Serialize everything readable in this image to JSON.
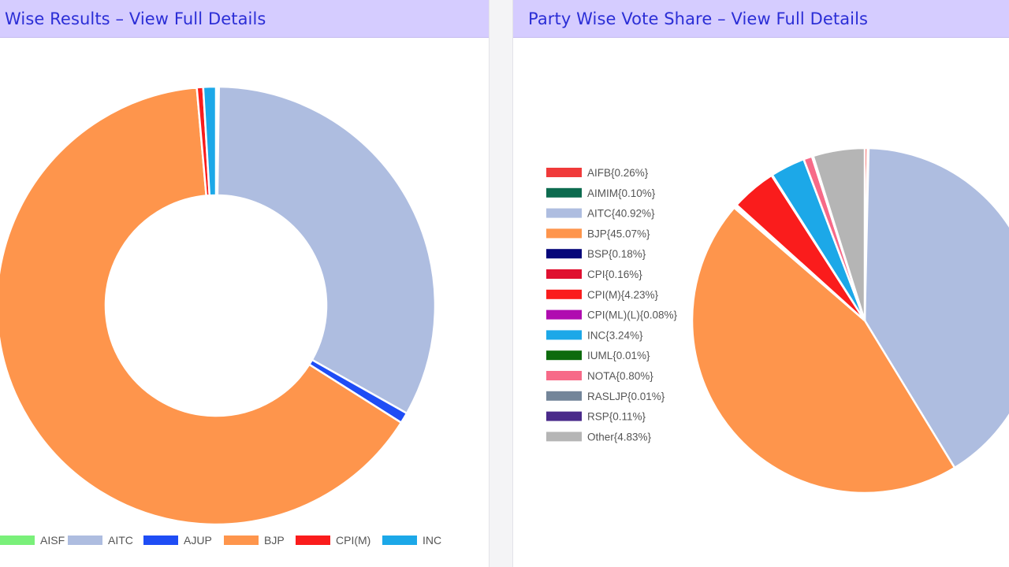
{
  "left_panel": {
    "title": "Wise Results – View Full Details"
  },
  "right_panel": {
    "title": "Party Wise Vote Share – View Full Details"
  },
  "chart_data": [
    {
      "type": "pie",
      "variant": "doughnut",
      "title": "Wise Results",
      "legend_position": "bottom",
      "categories": [
        "AIFB",
        "AISF",
        "AITC",
        "AJUP",
        "BJP",
        "CPI(M)",
        "INC"
      ],
      "values": [
        0.3,
        0.3,
        92,
        2.2,
        180.3,
        1.3,
        2.6
      ],
      "colors": [
        "#f0463c",
        "#7af07a",
        "#aebde0",
        "#1f4df5",
        "#fe954c",
        "#fa1c1c",
        "#1ca8e8"
      ],
      "legend_entries": [
        "AISF",
        "AITC",
        "AJUP",
        "BJP",
        "CPI(M)",
        "INC"
      ],
      "legend_colors": [
        "#7af07a",
        "#aebde0",
        "#1f4df5",
        "#fe954c",
        "#fa1c1c",
        "#1ca8e8"
      ]
    },
    {
      "type": "pie",
      "title": "Party Wise Vote Share",
      "legend_position": "left",
      "categories": [
        "AIFB",
        "AIMIM",
        "AITC",
        "BJP",
        "BSP",
        "CPI",
        "CPI(M)",
        "CPI(ML)(L)",
        "INC",
        "IUML",
        "NOTA",
        "RASLJP",
        "RSP",
        "Other"
      ],
      "values": [
        0.26,
        0.1,
        40.92,
        45.07,
        0.18,
        0.16,
        4.23,
        0.08,
        3.24,
        0.01,
        0.8,
        0.01,
        0.11,
        4.83
      ],
      "legend_labels": [
        "AIFB{0.26%}",
        "AIMIM{0.10%}",
        "AITC{40.92%}",
        "BJP{45.07%}",
        "BSP{0.18%}",
        "CPI{0.16%}",
        "CPI(M){4.23%}",
        "CPI(ML)(L){0.08%}",
        "INC{3.24%}",
        "IUML{0.01%}",
        "NOTA{0.80%}",
        "RASLJP{0.01%}",
        "RSP{0.11%}",
        "Other{4.83%}"
      ],
      "colors": [
        "#f03a3a",
        "#0d6b4f",
        "#aebde0",
        "#fe954c",
        "#06067a",
        "#e01030",
        "#fa1c1c",
        "#b00cb0",
        "#1ca8e8",
        "#0d6b0d",
        "#f76a88",
        "#738599",
        "#4a2a8a",
        "#b5b5b5"
      ]
    }
  ]
}
